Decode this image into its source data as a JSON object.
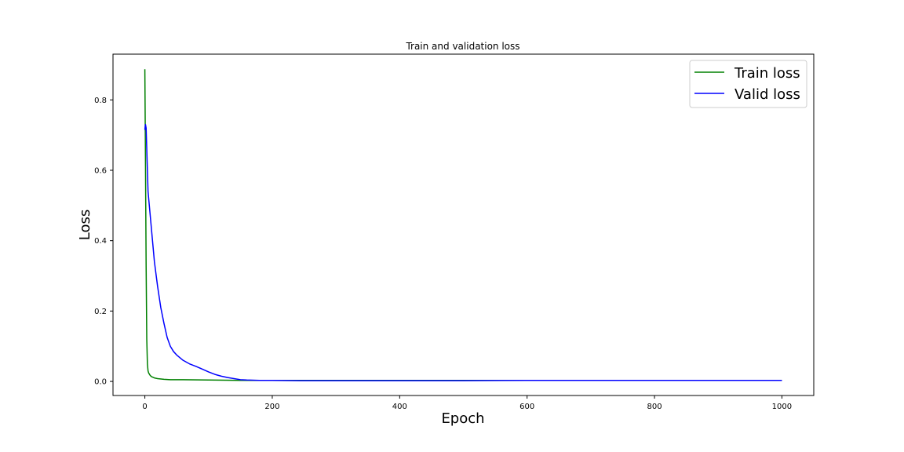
{
  "chart_data": {
    "type": "line",
    "title": "Train and validation loss",
    "xlabel": "Epoch",
    "ylabel": "Loss",
    "xlim": [
      -50,
      1050
    ],
    "ylim": [
      -0.04,
      0.93
    ],
    "xticks": [
      0,
      200,
      400,
      600,
      800,
      1000
    ],
    "yticks": [
      0.0,
      0.2,
      0.4,
      0.6,
      0.8
    ],
    "xtick_labels": [
      "0",
      "200",
      "400",
      "600",
      "800",
      "1000"
    ],
    "ytick_labels": [
      "0.0",
      "0.2",
      "0.4",
      "0.6",
      "0.8"
    ],
    "grid": false,
    "legend_position": "top-right",
    "series": [
      {
        "name": "Train loss",
        "color": "#008000",
        "x": [
          0,
          1,
          2,
          3,
          4,
          5,
          6,
          8,
          10,
          15,
          20,
          30,
          40,
          60,
          100,
          150,
          200,
          300,
          400,
          500,
          600,
          700,
          800,
          900,
          1000
        ],
        "y": [
          0.887,
          0.62,
          0.33,
          0.12,
          0.05,
          0.03,
          0.024,
          0.018,
          0.014,
          0.01,
          0.008,
          0.006,
          0.005,
          0.005,
          0.004,
          0.003,
          0.003,
          0.003,
          0.003,
          0.003,
          0.003,
          0.003,
          0.003,
          0.003,
          0.003
        ]
      },
      {
        "name": "Valid loss",
        "color": "#0000ff",
        "x": [
          0,
          1,
          2,
          3,
          4,
          5,
          6,
          8,
          10,
          15,
          20,
          25,
          30,
          35,
          40,
          45,
          50,
          60,
          70,
          80,
          90,
          100,
          110,
          120,
          130,
          140,
          150,
          160,
          180,
          200,
          250,
          300,
          400,
          500,
          600,
          700,
          800,
          900,
          1000
        ],
        "y": [
          0.715,
          0.73,
          0.72,
          0.66,
          0.6,
          0.54,
          0.52,
          0.48,
          0.44,
          0.34,
          0.27,
          0.21,
          0.165,
          0.125,
          0.1,
          0.085,
          0.075,
          0.06,
          0.05,
          0.043,
          0.035,
          0.027,
          0.02,
          0.015,
          0.011,
          0.008,
          0.005,
          0.004,
          0.003,
          0.003,
          0.002,
          0.002,
          0.002,
          0.002,
          0.003,
          0.003,
          0.003,
          0.003,
          0.003
        ]
      }
    ]
  }
}
